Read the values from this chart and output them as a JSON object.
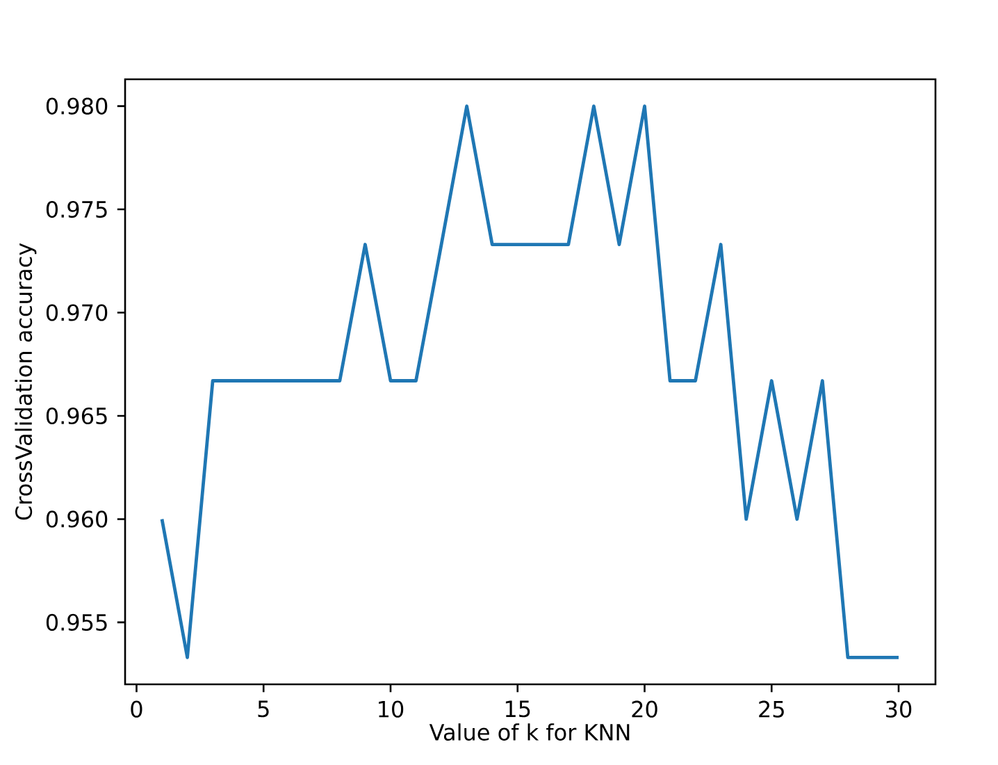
{
  "chart_data": {
    "type": "line",
    "xlabel": "Value of k for KNN",
    "ylabel": "CrossValidation accuracy",
    "x": [
      1,
      2,
      3,
      4,
      5,
      6,
      7,
      8,
      9,
      10,
      11,
      12,
      13,
      14,
      15,
      16,
      17,
      18,
      19,
      20,
      21,
      22,
      23,
      24,
      25,
      26,
      27,
      28,
      29,
      30
    ],
    "values": [
      0.96,
      0.9533,
      0.9667,
      0.9667,
      0.9667,
      0.9667,
      0.9667,
      0.9667,
      0.9733,
      0.9667,
      0.9667,
      0.9733,
      0.98,
      0.9733,
      0.9733,
      0.9733,
      0.9733,
      0.98,
      0.9733,
      0.98,
      0.9667,
      0.9667,
      0.9733,
      0.96,
      0.9667,
      0.96,
      0.9667,
      0.9533,
      0.9533,
      0.9533
    ],
    "color": "#1f77b4",
    "xlim": [
      -0.45,
      31.45
    ],
    "ylim": [
      0.952,
      0.9813
    ],
    "xticks": [
      0,
      5,
      10,
      15,
      20,
      25,
      30
    ],
    "yticks": [
      0.955,
      {
        "value": 0.96,
        "label": "0.960"
      },
      0.965,
      {
        "value": 0.97,
        "label": "0.970"
      },
      0.975,
      {
        "value": 0.98,
        "label": "0.980"
      }
    ]
  }
}
